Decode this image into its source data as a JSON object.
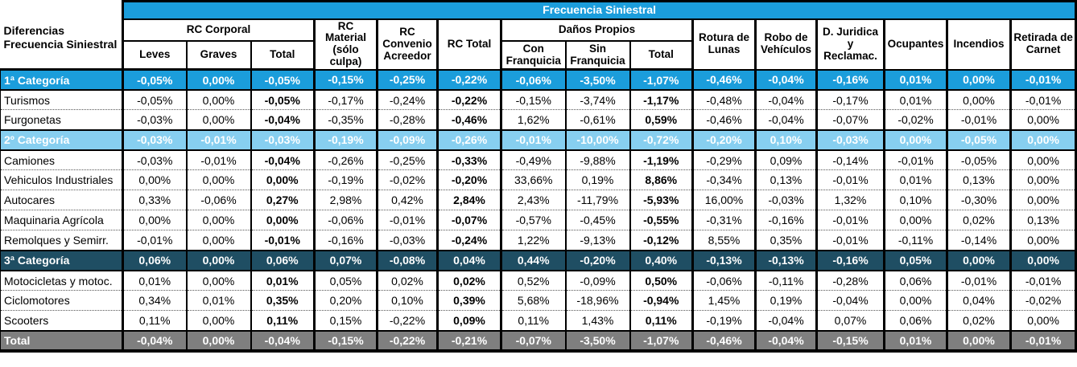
{
  "header": {
    "title": "Frecuencia Siniestral",
    "corner": "Diferencias Frecuencia Siniestral",
    "groups": {
      "rc_corporal": "RC Corporal",
      "rc_material": "RC Material (sólo culpa)",
      "rc_convenio": "RC Convenio Acreedor",
      "rc_total": "RC Total",
      "danos_propios": "Daños Propios",
      "rotura_lunas": "Rotura de Lunas",
      "robo_vehiculos": "Robo de Vehículos",
      "d_juridica": "D. Juridica y Reclamac.",
      "ocupantes": "Ocupantes",
      "incendios": "Incendios",
      "retirada_carnet": "Retirada de Carnet"
    },
    "subcols": {
      "leves": "Leves",
      "graves": "Graves",
      "total_rc": "Total",
      "con_franquicia": "Con Franquicia",
      "sin_franquicia": "Sin Franquicia",
      "total_dp": "Total"
    }
  },
  "colors": {
    "band_blue": "#1B9DDB",
    "light_blue": "#87CFF0",
    "dark_blue": "#1F4E63",
    "total_gray": "#7F7F7F"
  },
  "rows": [
    {
      "label": "1ª Categoría",
      "type": "cat-blue",
      "values": [
        "-0,05%",
        "0,00%",
        "-0,05%",
        "-0,15%",
        "-0,25%",
        "-0,22%",
        "-0,06%",
        "-3,50%",
        "-1,07%",
        "-0,46%",
        "-0,04%",
        "-0,16%",
        "0,01%",
        "0,00%",
        "-0,01%"
      ]
    },
    {
      "label": "Turismos",
      "type": "plain",
      "values": [
        "-0,05%",
        "0,00%",
        "-0,05%",
        "-0,17%",
        "-0,24%",
        "-0,22%",
        "-0,15%",
        "-3,74%",
        "-1,17%",
        "-0,48%",
        "-0,04%",
        "-0,17%",
        "0,01%",
        "0,00%",
        "-0,01%"
      ]
    },
    {
      "label": "Furgonetas",
      "type": "plain",
      "values": [
        "-0,03%",
        "0,00%",
        "-0,04%",
        "-0,35%",
        "-0,28%",
        "-0,46%",
        "1,62%",
        "-0,61%",
        "0,59%",
        "-0,46%",
        "-0,04%",
        "-0,07%",
        "-0,02%",
        "-0,01%",
        "0,00%"
      ]
    },
    {
      "label": "2º Categoría",
      "type": "cat-light",
      "values": [
        "-0,03%",
        "-0,01%",
        "-0,03%",
        "-0,19%",
        "-0,09%",
        "-0,26%",
        "-0,01%",
        "-10,00%",
        "-0,72%",
        "-0,20%",
        "0,10%",
        "-0,03%",
        "0,00%",
        "-0,05%",
        "0,00%"
      ]
    },
    {
      "label": "Camiones",
      "type": "plain",
      "values": [
        "-0,03%",
        "-0,01%",
        "-0,04%",
        "-0,26%",
        "-0,25%",
        "-0,33%",
        "-0,49%",
        "-9,88%",
        "-1,19%",
        "-0,29%",
        "0,09%",
        "-0,14%",
        "-0,01%",
        "-0,05%",
        "0,00%"
      ]
    },
    {
      "label": "Vehiculos Industriales",
      "type": "plain",
      "values": [
        "0,00%",
        "0,00%",
        "0,00%",
        "-0,19%",
        "-0,02%",
        "-0,20%",
        "33,66%",
        "0,19%",
        "8,86%",
        "-0,34%",
        "0,13%",
        "-0,01%",
        "0,01%",
        "0,13%",
        "0,00%"
      ]
    },
    {
      "label": "Autocares",
      "type": "plain",
      "values": [
        "0,33%",
        "-0,06%",
        "0,27%",
        "2,98%",
        "0,42%",
        "2,84%",
        "2,43%",
        "-11,79%",
        "-5,93%",
        "16,00%",
        "-0,03%",
        "1,32%",
        "0,10%",
        "-0,30%",
        "0,00%"
      ]
    },
    {
      "label": "Maquinaria Agrícola",
      "type": "plain",
      "values": [
        "0,00%",
        "0,00%",
        "0,00%",
        "-0,06%",
        "-0,01%",
        "-0,07%",
        "-0,57%",
        "-0,45%",
        "-0,55%",
        "-0,31%",
        "-0,16%",
        "-0,01%",
        "0,00%",
        "0,02%",
        "0,13%"
      ]
    },
    {
      "label": "Remolques y Semirr.",
      "type": "plain",
      "values": [
        "-0,01%",
        "0,00%",
        "-0,01%",
        "-0,16%",
        "-0,03%",
        "-0,24%",
        "1,22%",
        "-9,13%",
        "-0,12%",
        "8,55%",
        "0,35%",
        "-0,01%",
        "-0,11%",
        "-0,14%",
        "0,00%"
      ]
    },
    {
      "label": "3ª Categoría",
      "type": "cat-dark",
      "values": [
        "0,06%",
        "0,00%",
        "0,06%",
        "0,07%",
        "-0,08%",
        "0,04%",
        "0,44%",
        "-0,20%",
        "0,40%",
        "-0,13%",
        "-0,13%",
        "-0,16%",
        "0,05%",
        "0,00%",
        "0,00%"
      ]
    },
    {
      "label": "Motocicletas y motoc.",
      "type": "plain",
      "values": [
        "0,01%",
        "0,00%",
        "0,01%",
        "0,05%",
        "0,02%",
        "0,02%",
        "0,52%",
        "-0,09%",
        "0,50%",
        "-0,06%",
        "-0,11%",
        "-0,28%",
        "0,06%",
        "-0,01%",
        "-0,01%"
      ]
    },
    {
      "label": "Ciclomotores",
      "type": "plain",
      "values": [
        "0,34%",
        "0,01%",
        "0,35%",
        "0,20%",
        "0,10%",
        "0,39%",
        "5,68%",
        "-18,96%",
        "-0,94%",
        "1,45%",
        "0,19%",
        "-0,04%",
        "0,00%",
        "0,04%",
        "-0,02%"
      ]
    },
    {
      "label": "Scooters",
      "type": "plain",
      "values": [
        "0,11%",
        "0,00%",
        "0,11%",
        "0,15%",
        "-0,22%",
        "0,09%",
        "0,11%",
        "1,43%",
        "0,11%",
        "-0,19%",
        "-0,04%",
        "0,07%",
        "0,06%",
        "0,02%",
        "0,00%"
      ]
    },
    {
      "label": "Total",
      "type": "total",
      "values": [
        "-0,04%",
        "0,00%",
        "-0,04%",
        "-0,15%",
        "-0,22%",
        "-0,21%",
        "-0,07%",
        "-3,50%",
        "-1,07%",
        "-0,46%",
        "-0,04%",
        "-0,15%",
        "0,01%",
        "0,00%",
        "-0,01%"
      ]
    }
  ],
  "bold_value_columns": [
    2,
    5,
    8
  ],
  "group_start_columns": [
    0,
    3,
    4,
    5,
    6,
    9,
    10,
    11,
    12,
    13,
    14
  ]
}
